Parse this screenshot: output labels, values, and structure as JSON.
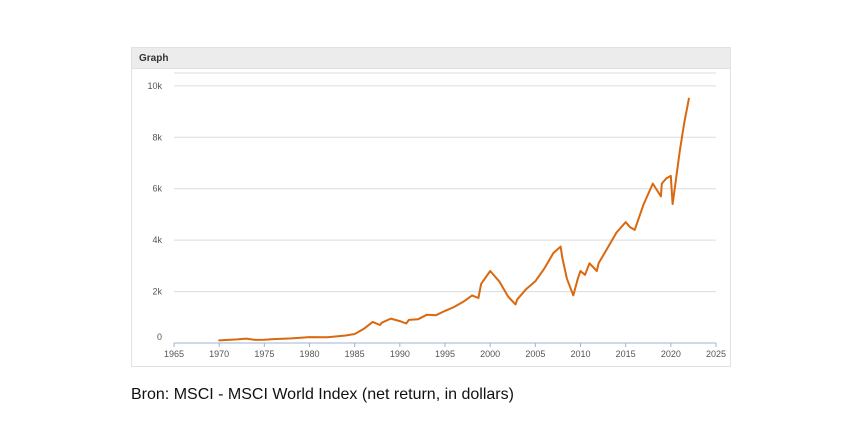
{
  "panel": {
    "title": "Graph"
  },
  "caption": "Bron: MSCI - MSCI World Index (net return, in dollars)",
  "colors": {
    "line": "#d9680f",
    "grid": "#dcdcdc",
    "axis": "#9db3d6",
    "header_bg": "#ececec"
  },
  "chart_data": {
    "type": "line",
    "title": "",
    "xlabel": "",
    "ylabel": "",
    "xlim": [
      1965,
      2025
    ],
    "ylim": [
      0,
      10500
    ],
    "grid": true,
    "legend": "none",
    "x_ticks": [
      1965,
      1970,
      1975,
      1980,
      1985,
      1990,
      1995,
      2000,
      2005,
      2010,
      2015,
      2020,
      2025
    ],
    "x_tick_labels": [
      "1965",
      "1970",
      "1975",
      "1980",
      "1985",
      "1990",
      "1995",
      "2000",
      "2005",
      "2010",
      "2015",
      "2020",
      "2025"
    ],
    "y_ticks": [
      0,
      2000,
      4000,
      6000,
      8000,
      10000
    ],
    "y_tick_labels": [
      "0",
      "2k",
      "4k",
      "6k",
      "8k",
      "10k"
    ],
    "series": [
      {
        "x": [
          1970,
          1972,
          1973,
          1974,
          1975,
          1976,
          1978,
          1980,
          1982,
          1984,
          1985,
          1986,
          1987,
          1987.8,
          1988,
          1989,
          1990,
          1990.7,
          1991,
          1992,
          1993,
          1994,
          1995,
          1996,
          1997,
          1998,
          1998.7,
          1999,
          2000,
          2001,
          2002,
          2002.8,
          2003,
          2004,
          2005,
          2006,
          2007,
          2007.8,
          2008,
          2008.5,
          2009.2,
          2009.7,
          2010,
          2010.5,
          2011,
          2011.8,
          2012,
          2013,
          2014,
          2015,
          2015.5,
          2016,
          2017,
          2018,
          2018.9,
          2019,
          2019.5,
          2020,
          2020.2,
          2020.5,
          2021,
          2021.5,
          2022
        ],
        "values": [
          100,
          140,
          170,
          120,
          130,
          150,
          180,
          230,
          220,
          290,
          350,
          550,
          820,
          700,
          790,
          950,
          850,
          760,
          900,
          920,
          1100,
          1080,
          1250,
          1400,
          1600,
          1850,
          1750,
          2300,
          2800,
          2400,
          1800,
          1500,
          1700,
          2100,
          2400,
          2900,
          3500,
          3750,
          3300,
          2500,
          1850,
          2500,
          2800,
          2650,
          3100,
          2800,
          3100,
          3700,
          4300,
          4700,
          4500,
          4400,
          5400,
          6200,
          5700,
          6200,
          6400,
          6500,
          5400,
          6200,
          7500,
          8600,
          9500
        ]
      }
    ]
  }
}
